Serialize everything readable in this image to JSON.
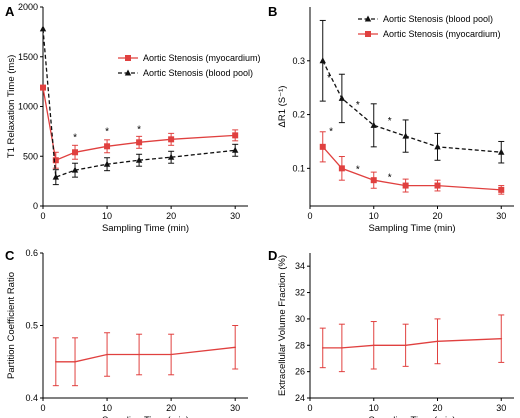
{
  "colors": {
    "myocardium": "#e0403f",
    "blood": "#111111",
    "axis": "#000000"
  },
  "chart_data": [
    {
      "panel": "A",
      "type": "line",
      "xlabel": "Sampling Time (min)",
      "ylabel": "T1 Relaxation Time (ms)",
      "xlim": [
        0,
        32
      ],
      "ylim": [
        0,
        2000
      ],
      "xticks": [
        "0",
        "10",
        "20",
        "30"
      ],
      "yticks": [
        "0",
        "500",
        "1000",
        "1500",
        "2000"
      ],
      "xtick_values": [
        0,
        10,
        20,
        30
      ],
      "ytick_values": [
        0,
        500,
        1000,
        1500,
        2000
      ],
      "grid": false,
      "legend_position": "top-right",
      "series": [
        {
          "name": "Aortic Stenosis (myocardium)",
          "color": "#e0403f",
          "marker": "square",
          "fit": "solid",
          "x": [
            0,
            2,
            5,
            10,
            15,
            20,
            30
          ],
          "y": [
            1190,
            460,
            540,
            600,
            640,
            670,
            710
          ],
          "err": [
            0,
            80,
            70,
            65,
            60,
            60,
            55
          ]
        },
        {
          "name": "Aortic Stenosis (blood pool)",
          "color": "#111111",
          "marker": "triangle",
          "fit": "dashed",
          "x": [
            0,
            2,
            5,
            10,
            15,
            20,
            30
          ],
          "y": [
            1780,
            290,
            360,
            420,
            460,
            490,
            560
          ],
          "err": [
            0,
            75,
            70,
            65,
            60,
            60,
            60
          ]
        }
      ],
      "annotations": [
        {
          "text": "*",
          "x": 5,
          "y": 700
        },
        {
          "text": "*",
          "x": 10,
          "y": 760
        },
        {
          "text": "*",
          "x": 15,
          "y": 780
        }
      ]
    },
    {
      "panel": "B",
      "type": "line",
      "xlabel": "Sampling Time (min)",
      "ylabel": "ΔR1 (S⁻¹)",
      "xlim": [
        0,
        32
      ],
      "ylim": [
        0.03,
        0.4
      ],
      "xticks": [
        "0",
        "10",
        "20",
        "30"
      ],
      "yticks": [
        "0.1",
        "0.2",
        "0.3"
      ],
      "xtick_values": [
        0,
        10,
        20,
        30
      ],
      "ytick_values": [
        0.1,
        0.2,
        0.3
      ],
      "grid": false,
      "legend_position": "top-right",
      "series": [
        {
          "name": "Aortic Stenosis (blood pool)",
          "color": "#111111",
          "marker": "triangle",
          "fit": "dashed",
          "x": [
            2,
            5,
            10,
            15,
            20,
            30
          ],
          "y": [
            0.3,
            0.23,
            0.18,
            0.16,
            0.14,
            0.13
          ],
          "err": [
            0.075,
            0.045,
            0.04,
            0.03,
            0.025,
            0.02
          ]
        },
        {
          "name": "Aortic Stenosis (myocardium)",
          "color": "#e0403f",
          "marker": "square",
          "fit": "solid",
          "x": [
            2,
            5,
            10,
            15,
            20,
            30
          ],
          "y": [
            0.14,
            0.1,
            0.078,
            0.068,
            0.068,
            0.06
          ],
          "err": [
            0.028,
            0.022,
            0.015,
            0.012,
            0.01,
            0.008
          ]
        }
      ],
      "annotations": [
        {
          "text": "*",
          "x": 3,
          "y": 0.27
        },
        {
          "text": "*",
          "x": 3.3,
          "y": 0.17
        },
        {
          "text": "*",
          "x": 7.5,
          "y": 0.22
        },
        {
          "text": "*",
          "x": 7.5,
          "y": 0.1
        },
        {
          "text": "*",
          "x": 12.5,
          "y": 0.19
        },
        {
          "text": "*",
          "x": 12.5,
          "y": 0.085
        }
      ]
    },
    {
      "panel": "C",
      "type": "line",
      "xlabel": "Sampling Time (min)",
      "ylabel": "Partition Coefficient Ratio",
      "xlim": [
        0,
        32
      ],
      "ylim": [
        0.4,
        0.6
      ],
      "xticks": [
        "0",
        "10",
        "20",
        "30"
      ],
      "yticks": [
        "0.4",
        "0.5",
        "0.6"
      ],
      "xtick_values": [
        0,
        10,
        20,
        30
      ],
      "ytick_values": [
        0.4,
        0.5,
        0.6
      ],
      "grid": false,
      "series": [
        {
          "color": "#e0403f",
          "marker": "none",
          "fit": "solid",
          "x": [
            2,
            5,
            10,
            15,
            20,
            30
          ],
          "y": [
            0.45,
            0.45,
            0.46,
            0.46,
            0.46,
            0.47
          ],
          "err": [
            0.033,
            0.033,
            0.03,
            0.028,
            0.028,
            0.03
          ]
        }
      ],
      "annotations": []
    },
    {
      "panel": "D",
      "type": "line",
      "xlabel": "Sampling Time (min)",
      "ylabel": "Extracellular Volume Fraction (%)",
      "xlim": [
        0,
        32
      ],
      "ylim": [
        24,
        35
      ],
      "xticks": [
        "0",
        "10",
        "20",
        "30"
      ],
      "yticks": [
        "24",
        "26",
        "28",
        "30",
        "32",
        "34"
      ],
      "xtick_values": [
        0,
        10,
        20,
        30
      ],
      "ytick_values": [
        24,
        26,
        28,
        30,
        32,
        34
      ],
      "grid": false,
      "series": [
        {
          "color": "#e0403f",
          "marker": "none",
          "fit": "solid",
          "x": [
            2,
            5,
            10,
            15,
            20,
            30
          ],
          "y": [
            27.8,
            27.8,
            28.0,
            28.0,
            28.3,
            28.5
          ],
          "err": [
            1.5,
            1.8,
            1.8,
            1.6,
            1.7,
            1.8
          ]
        }
      ],
      "annotations": []
    }
  ]
}
